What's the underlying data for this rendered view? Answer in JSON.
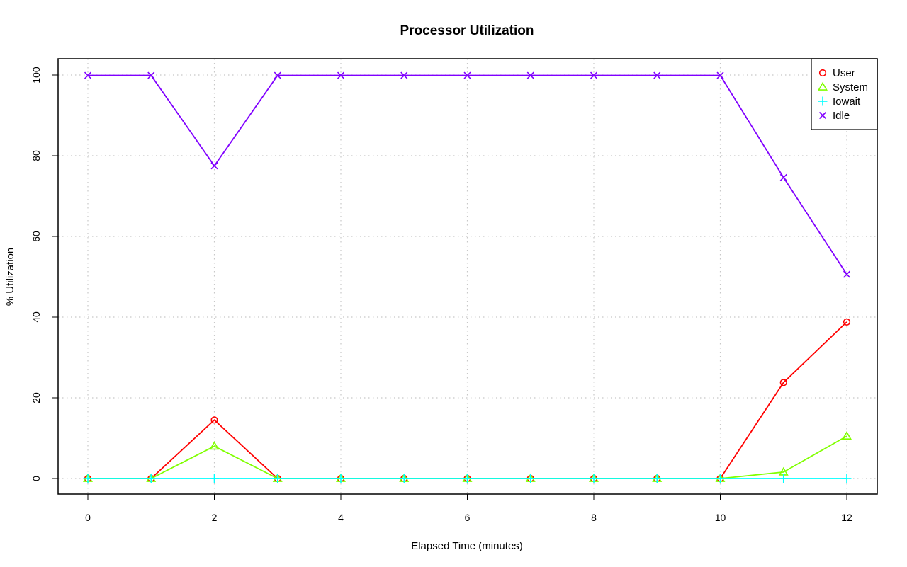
{
  "chart_data": {
    "type": "line",
    "title": "Processor Utilization",
    "xlabel": "Elapsed Time (minutes)",
    "ylabel": "% Utilization",
    "xlim": [
      0,
      12
    ],
    "ylim": [
      0,
      100
    ],
    "x_ticks": [
      0,
      2,
      4,
      6,
      8,
      10,
      12
    ],
    "y_ticks": [
      0,
      20,
      40,
      60,
      80,
      100
    ],
    "grid": true,
    "legend_position": "top-right",
    "x": [
      0,
      1,
      2,
      3,
      4,
      5,
      6,
      7,
      8,
      9,
      10,
      11,
      12
    ],
    "series": [
      {
        "name": "User",
        "color": "#ff0000",
        "marker": "circle",
        "values": [
          0,
          0,
          14.5,
          0,
          0,
          0,
          0,
          0,
          0,
          0,
          0,
          23.8,
          38.8
        ]
      },
      {
        "name": "System",
        "color": "#80ff00",
        "marker": "triangle",
        "values": [
          0,
          0,
          8,
          0,
          0,
          0,
          0,
          0,
          0,
          0,
          0,
          1.6,
          10.5
        ]
      },
      {
        "name": "Iowait",
        "color": "#00ffff",
        "marker": "plus",
        "values": [
          0,
          0,
          0,
          0,
          0,
          0,
          0,
          0,
          0,
          0,
          0,
          0,
          0
        ]
      },
      {
        "name": "Idle",
        "color": "#8000ff",
        "marker": "cross",
        "values": [
          99.9,
          99.9,
          77.5,
          99.9,
          99.9,
          99.9,
          99.9,
          99.9,
          99.9,
          99.9,
          99.9,
          74.6,
          50.6
        ]
      }
    ]
  }
}
